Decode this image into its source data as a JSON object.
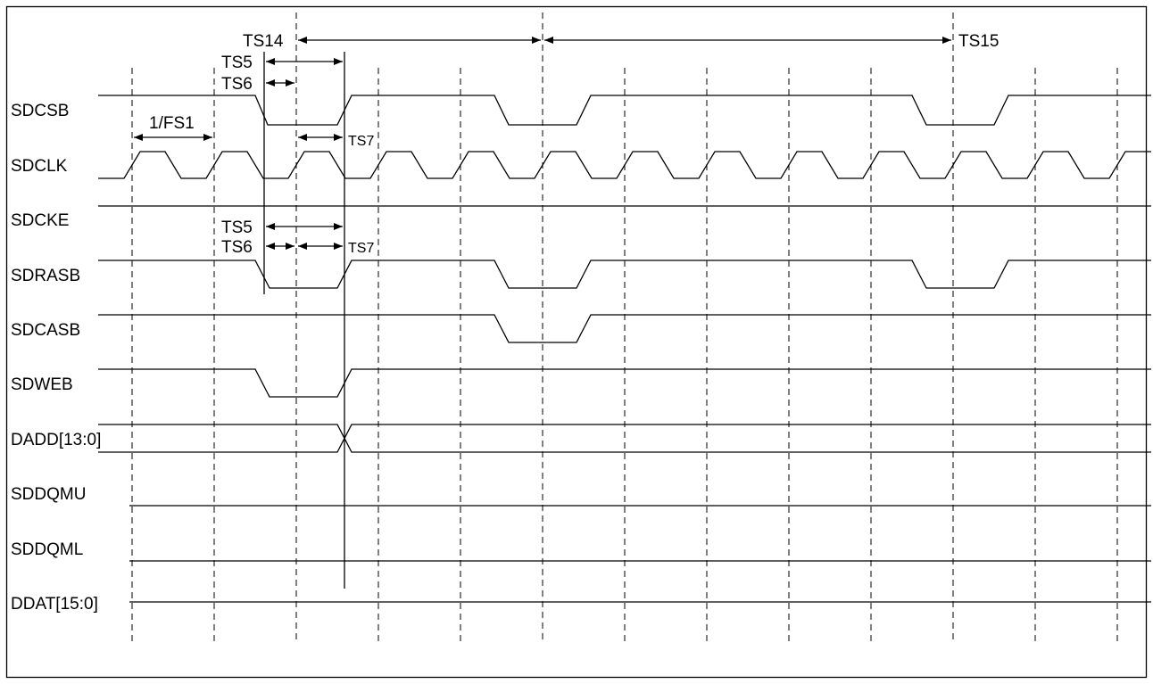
{
  "signals": [
    {
      "id": "sdcsb",
      "name": "SDCSB"
    },
    {
      "id": "sdclk",
      "name": "SDCLK"
    },
    {
      "id": "sdcke",
      "name": "SDCKE"
    },
    {
      "id": "sdrasb",
      "name": "SDRASB"
    },
    {
      "id": "sdcasb",
      "name": "SDCASB"
    },
    {
      "id": "sdweb",
      "name": "SDWEB"
    },
    {
      "id": "dadd",
      "name": "DADD[13:0]"
    },
    {
      "id": "sddqmu",
      "name": "SDDQMU"
    },
    {
      "id": "sddqml",
      "name": "SDDQML"
    },
    {
      "id": "ddat",
      "name": "DDAT[15:0]"
    }
  ],
  "annotations": {
    "ts14": "TS14",
    "ts15": "TS15",
    "ts5_top": "TS5",
    "ts6_top": "TS6",
    "fs1": "1/FS1",
    "ts7_top": "TS7",
    "ts5_mid": "TS5",
    "ts6_mid": "TS6",
    "ts7_mid": "TS7"
  },
  "colors": {
    "line": "#000000",
    "background": "#ffffff"
  }
}
